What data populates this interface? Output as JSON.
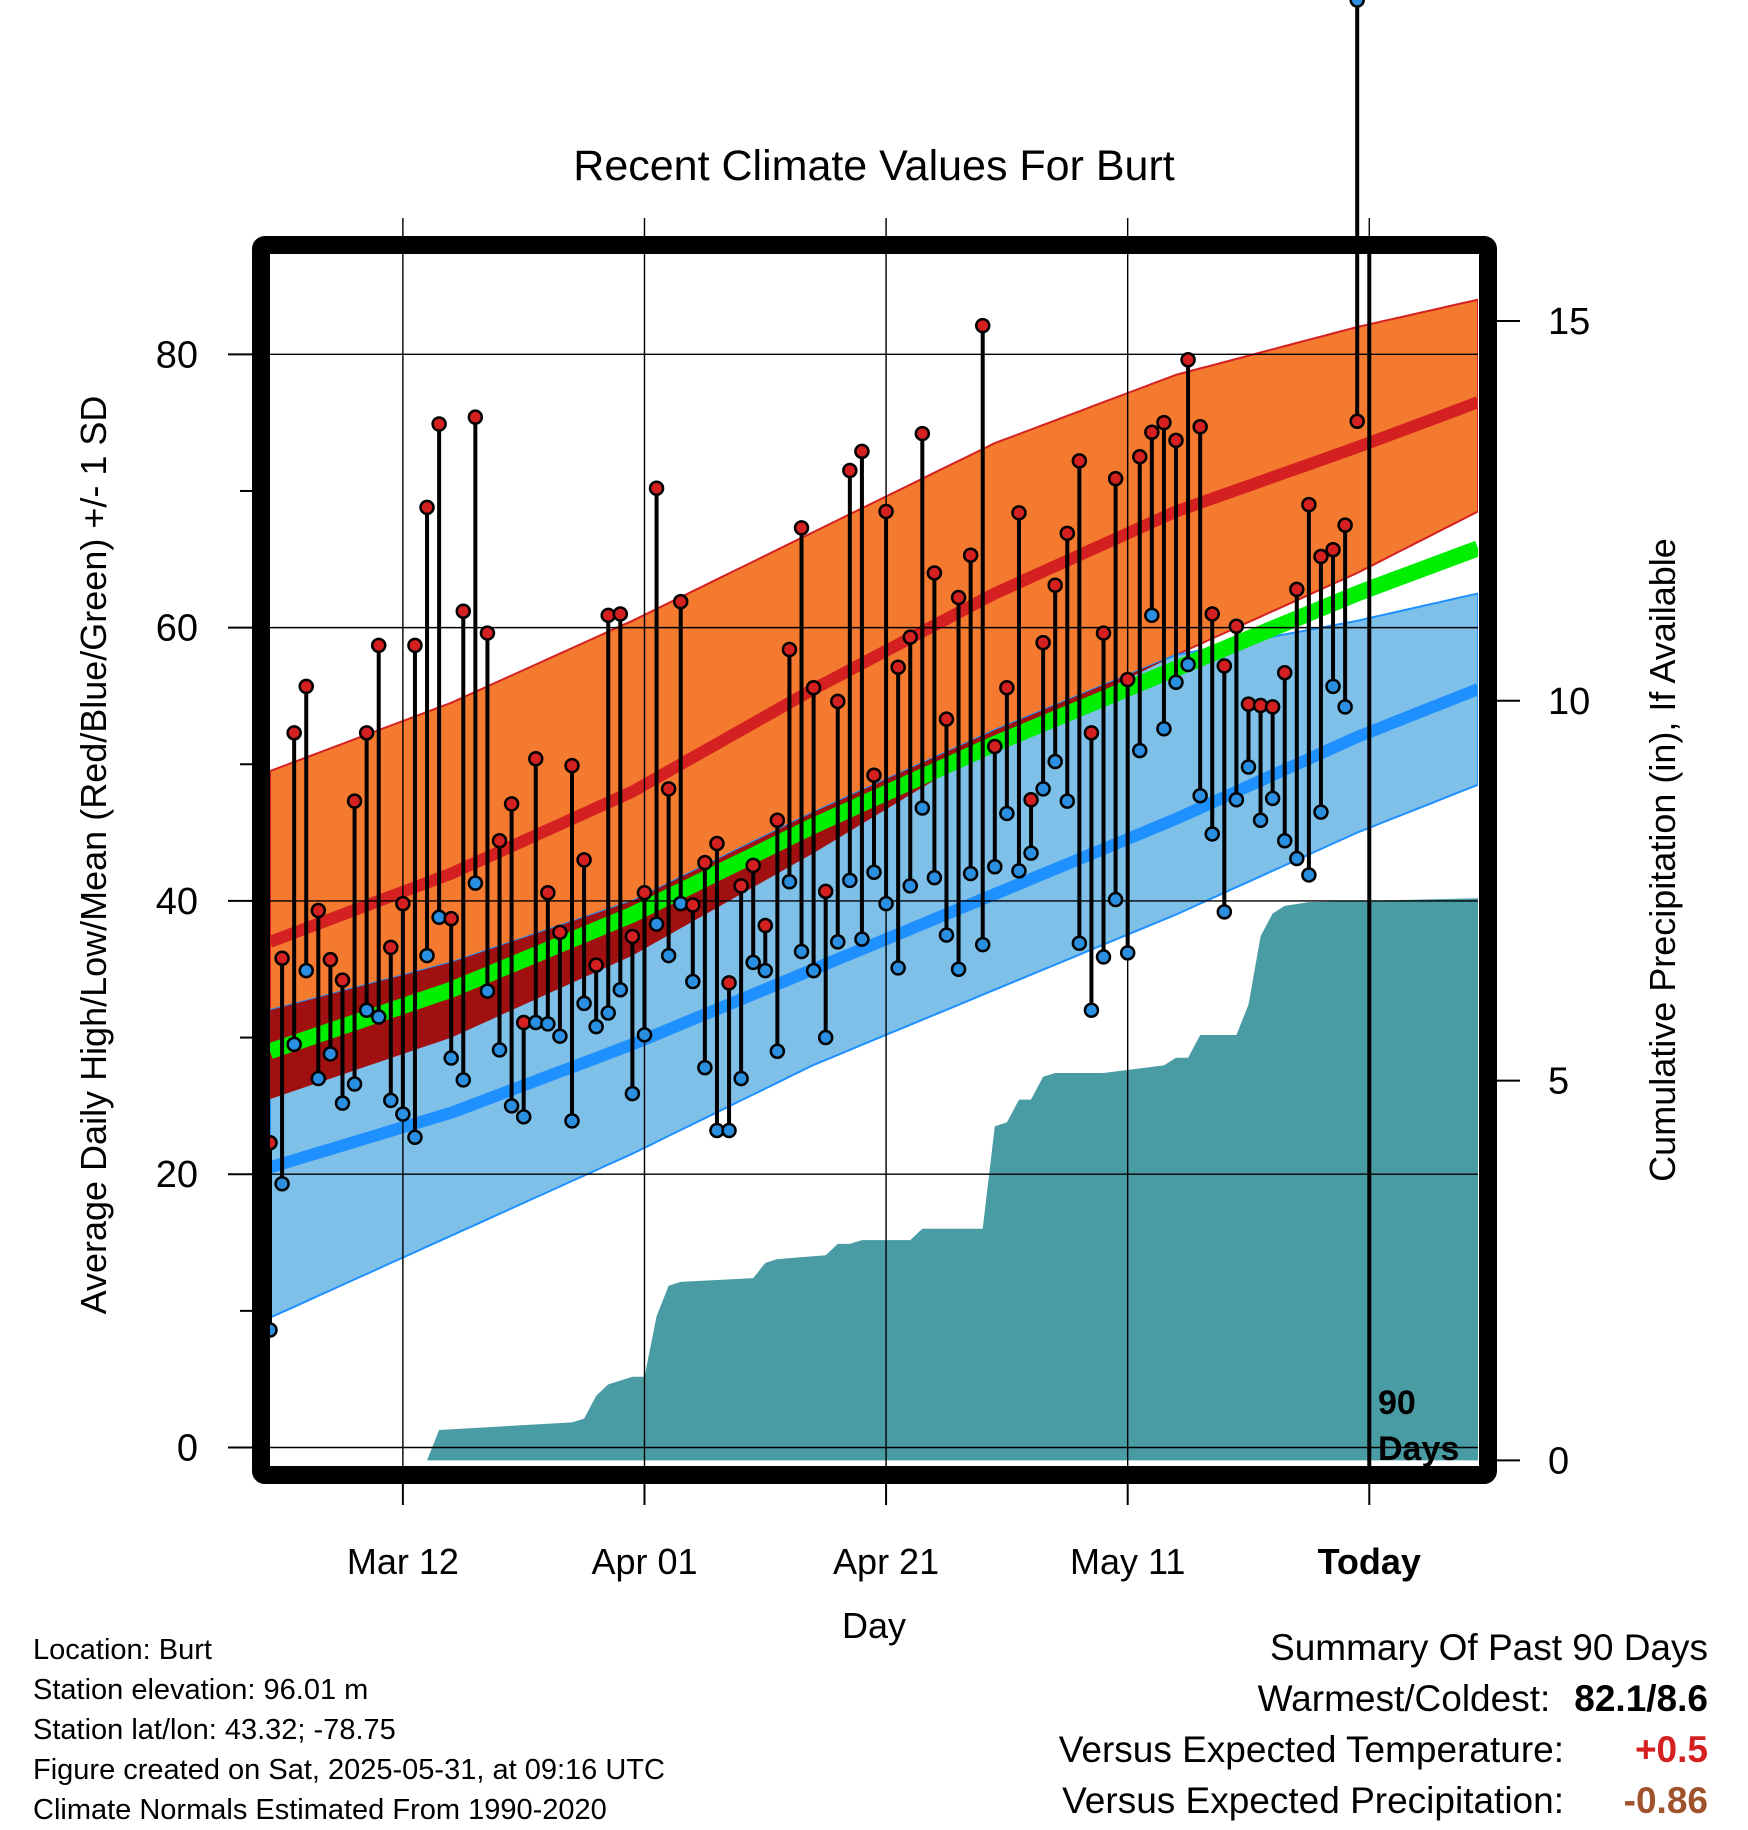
{
  "chart_data": {
    "type": "line",
    "title": "Recent Climate Values For Burt",
    "xlabel": "Day",
    "ylabel": "Average Daily High/Low/Mean (Red/Blue/Green) +/- 1 SD",
    "y2label": "Cumulative Precipitation (in), If Available",
    "x_tick_labels": [
      "Mar 12",
      "Apr 01",
      "Apr 21",
      "May 11",
      "Today"
    ],
    "x_tick_days": [
      11,
      31,
      51,
      71,
      91
    ],
    "xlim": [
      0,
      100
    ],
    "ylim": [
      -1.5,
      88
    ],
    "y_ticks": [
      0,
      20,
      40,
      60,
      80
    ],
    "y2lim": [
      -0.1,
      16
    ],
    "y2_ticks": [
      0,
      5,
      10,
      15
    ],
    "today_marker": {
      "day": 91,
      "label_line1": "90",
      "label_line2": "Days"
    },
    "normal_high": {
      "days": [
        0,
        15,
        30,
        45,
        60,
        75,
        90,
        100
      ],
      "mean": [
        37.0,
        42.0,
        48.0,
        55.5,
        62.5,
        68.5,
        73.2,
        76.5
      ],
      "upper": [
        49.5,
        54.5,
        60.5,
        67.0,
        73.5,
        78.5,
        82.0,
        84.0
      ],
      "lower": [
        25.5,
        30.0,
        36.0,
        43.5,
        51.5,
        58.0,
        64.0,
        68.5
      ]
    },
    "normal_low": {
      "days": [
        0,
        15,
        30,
        45,
        60,
        75,
        90,
        100
      ],
      "mean": [
        20.5,
        24.5,
        29.5,
        35.0,
        40.5,
        46.0,
        52.0,
        55.5
      ],
      "upper": [
        32.0,
        35.5,
        40.0,
        46.5,
        52.5,
        58.0,
        60.5,
        62.5
      ],
      "lower": [
        9.5,
        15.5,
        21.5,
        28.0,
        33.5,
        39.0,
        45.0,
        48.5
      ]
    },
    "normal_mean": {
      "days": [
        0,
        15,
        30,
        45,
        60,
        75,
        90,
        100
      ],
      "values": [
        29.0,
        33.5,
        39.0,
        45.5,
        51.5,
        57.0,
        62.5,
        65.8
      ]
    },
    "daily_high": [
      22.3,
      35.8,
      52.3,
      55.7,
      39.3,
      35.7,
      34.2,
      47.3,
      52.3,
      58.7,
      36.6,
      39.8,
      58.7,
      68.8,
      74.9,
      38.7,
      61.2,
      75.4,
      59.6,
      44.4,
      47.1,
      31.1,
      50.4,
      40.6,
      37.7,
      49.9,
      43.0,
      35.3,
      60.9,
      61.0,
      37.4,
      40.6,
      70.2,
      48.2,
      61.9,
      39.7,
      42.8,
      44.2,
      34.0,
      41.1,
      42.6,
      38.2,
      45.9,
      58.4,
      67.3,
      55.6,
      40.7,
      54.6,
      71.5,
      72.9,
      49.2,
      68.5,
      57.1,
      59.3,
      74.2,
      64.0,
      53.3,
      62.2,
      65.3,
      82.1,
      51.3,
      55.6,
      68.4,
      47.4,
      58.9,
      63.1,
      66.9,
      72.2,
      52.3,
      59.6,
      70.9,
      56.2,
      72.5,
      74.3,
      75.0,
      73.7,
      79.6,
      74.7,
      61.0,
      57.2,
      60.1,
      54.4,
      54.3,
      54.2,
      56.7,
      62.8,
      69.0,
      65.2,
      65.7,
      67.5,
      75.1
    ],
    "daily_low": [
      8.6,
      19.3,
      29.5,
      34.9,
      27.0,
      28.8,
      25.2,
      26.6,
      32.0,
      31.5,
      25.4,
      24.4,
      22.7,
      36.0,
      38.8,
      28.5,
      26.9,
      41.3,
      33.4,
      29.1,
      25.0,
      24.2,
      31.1,
      31.0,
      30.1,
      23.9,
      32.5,
      30.8,
      31.8,
      33.5,
      25.9,
      30.2,
      38.3,
      36.0,
      39.8,
      34.1,
      27.8,
      23.2,
      23.2,
      27.0,
      35.5,
      34.9,
      29.0,
      41.4,
      36.3,
      34.9,
      30.0,
      37.0,
      41.5,
      37.2,
      42.1,
      39.8,
      35.1,
      41.1,
      46.8,
      41.7,
      37.5,
      35.0,
      42.0,
      36.8,
      42.5,
      46.4,
      42.2,
      43.5,
      48.2,
      50.2,
      47.3,
      36.9,
      32.0,
      35.9,
      40.1,
      36.2,
      51.0,
      60.9,
      52.6,
      56.0,
      57.3,
      47.7,
      44.9,
      39.2,
      47.4,
      49.8,
      45.9,
      47.5,
      44.4,
      43.1,
      41.9,
      46.5,
      55.7,
      54.2
    ],
    "cumulative_precip": {
      "days": [
        0,
        13,
        14,
        25,
        26,
        27,
        28,
        29,
        30,
        31,
        32,
        33,
        34,
        40,
        41,
        42,
        46,
        47,
        48,
        49,
        53,
        54,
        55,
        59,
        60,
        61,
        62,
        63,
        64,
        65,
        66,
        67,
        68,
        69,
        74,
        75,
        76,
        77,
        80,
        81,
        82,
        83,
        84,
        86,
        100
      ],
      "values": [
        0.0,
        0.0,
        0.4,
        0.5,
        0.55,
        0.85,
        1.0,
        1.05,
        1.1,
        1.1,
        1.9,
        2.3,
        2.35,
        2.4,
        2.6,
        2.65,
        2.7,
        2.85,
        2.85,
        2.9,
        2.9,
        3.05,
        3.05,
        3.05,
        4.4,
        4.45,
        4.75,
        4.75,
        5.05,
        5.1,
        5.1,
        5.1,
        5.1,
        5.1,
        5.2,
        5.3,
        5.3,
        5.6,
        5.6,
        6.0,
        6.9,
        7.2,
        7.3,
        7.35,
        7.4
      ]
    }
  },
  "info": {
    "location": "Location: Burt",
    "elevation": "Station elevation: 96.01 m",
    "latlon": "Station lat/lon: 43.32; -78.75",
    "created": "Figure created on Sat, 2025-05-31, at 09:16 UTC",
    "normals": "Climate Normals Estimated From 1990-2020"
  },
  "summary": {
    "heading": "Summary Of Past 90 Days",
    "warmest_label": "Warmest/Coldest:",
    "warmest_value": "82.1/8.6",
    "temp_label": "Versus Expected Temperature:",
    "temp_value": "+0.5",
    "precip_label": "Versus Expected Precipitation:",
    "precip_value": "-0.86"
  },
  "colors": {
    "high_band": "#f47a30",
    "high_mean": "#d42020",
    "low_band": "#7fc0e8",
    "low_mean": "#1e90ff",
    "mean_line": "#00ee00",
    "overlap_band": "#a01010",
    "precip_fill": "#4a9ca4",
    "high_marker": "#d42020",
    "low_marker": "#2a8fe0"
  }
}
